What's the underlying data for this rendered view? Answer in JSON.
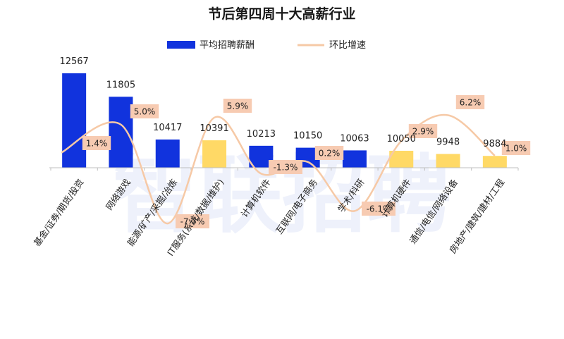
{
  "watermark": "智联招聘",
  "chart_data": {
    "type": "bar",
    "title": "节后第四周十大高薪行业",
    "categories": [
      "基金/证券/期货/投资",
      "网络游戏",
      "能源/矿产/采掘/冶炼",
      "IT服务(系统/数据/维护)",
      "计算机软件",
      "互联网/电子商务",
      "学术/科研",
      "计算机硬件",
      "通信/电信/网络设备",
      "房地产/建筑/建材/工程"
    ],
    "series": [
      {
        "name": "平均招聘薪酬",
        "type": "bar",
        "values": [
          12567,
          11805,
          10417,
          10391,
          10213,
          10150,
          10063,
          10050,
          9948,
          9884
        ],
        "value_labels": [
          "12567",
          "11805",
          "10417",
          "10391",
          "10213",
          "10150",
          "10063",
          "10050",
          "9948",
          "9884"
        ],
        "color": "#1133dd",
        "highlight_color": "#ffd966",
        "highlight_indices": [
          3,
          7,
          8,
          9
        ]
      },
      {
        "name": "环比增速",
        "type": "line",
        "smooth": true,
        "values": [
          1.4,
          5.0,
          -7.7,
          5.9,
          -1.3,
          0.2,
          -6.1,
          2.9,
          6.2,
          1.0
        ],
        "value_labels": [
          "1.4%",
          "5.0%",
          "-7.7%",
          "5.9%",
          "-1.3%",
          "0.2%",
          "-6.1%",
          "2.9%",
          "6.2%",
          "1.0%"
        ],
        "color": "#f6c9a6",
        "label_bg": "#f7cbb2"
      }
    ],
    "legend": "top-center",
    "grid": false,
    "axis_color": "#bfbfbf"
  }
}
